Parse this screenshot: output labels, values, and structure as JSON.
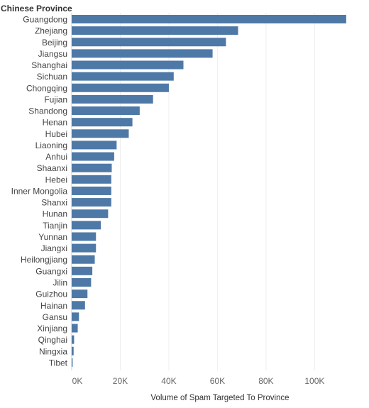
{
  "chart_data": {
    "type": "bar",
    "orientation": "horizontal",
    "y_header": "Chinese Province",
    "xlabel": "Volume of Spam Targeted To Province",
    "categories": [
      "Guangdong",
      "Zhejiang",
      "Beijing",
      "Jiangsu",
      "Shanghai",
      "Sichuan",
      "Chongqing",
      "Fujian",
      "Shandong",
      "Henan",
      "Hubei",
      "Liaoning",
      "Anhui",
      "Shaanxi",
      "Hebei",
      "Inner Mongolia",
      "Shanxi",
      "Hunan",
      "Tianjin",
      "Yunnan",
      "Jiangxi",
      "Heilongjiang",
      "Guangxi",
      "Jilin",
      "Guizhou",
      "Hainan",
      "Gansu",
      "Xinjiang",
      "Qinghai",
      "Ningxia",
      "Tibet"
    ],
    "values": [
      113000,
      68500,
      63500,
      58000,
      46000,
      42000,
      40000,
      33500,
      28000,
      25000,
      23500,
      18500,
      17500,
      16500,
      16300,
      16300,
      16300,
      15000,
      12000,
      10000,
      10000,
      9500,
      8500,
      8000,
      6500,
      5500,
      3000,
      2500,
      1000,
      800,
      400
    ],
    "xlim": [
      0,
      118000
    ],
    "xticks": [
      0,
      20000,
      40000,
      60000,
      80000,
      100000
    ],
    "xtick_labels": [
      "0K",
      "20K",
      "40K",
      "60K",
      "80K",
      "100K"
    ],
    "grid": true,
    "bar_color": "#4e79a7"
  }
}
